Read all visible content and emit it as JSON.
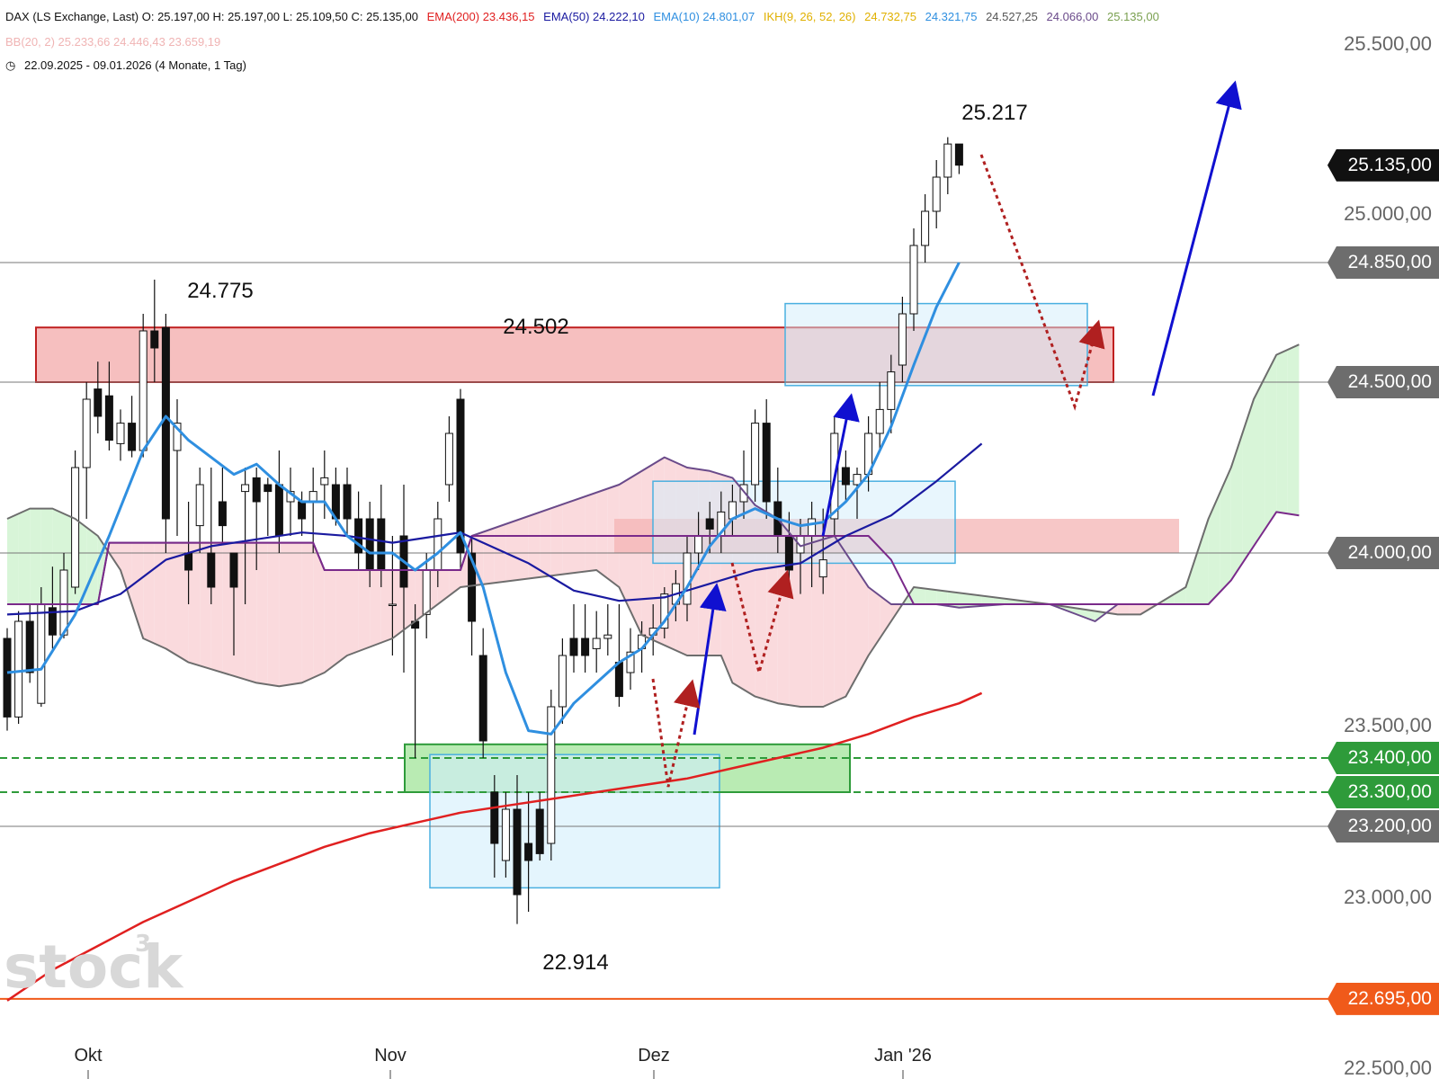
{
  "header": {
    "line1": "DAX (LS Exchange, Last)  O: 25.197,00  H: 25.197,00  L: 25.109,50  C: 25.135,00",
    "ema200": "EMA(200)  23.436,15",
    "ema50": "EMA(50)  24.222,10",
    "ema10": "EMA(10)  24.801,07",
    "ikh_label": "IKH(9, 26, 52, 26)",
    "ikh_values": [
      "24.732,75",
      "24.321,75",
      "24.527,25",
      "24.066,00",
      "25.135,00"
    ],
    "bb": "BB(20, 2)  25.233,66  24.446,43  23.659,19",
    "range": "22.09.2025 - 09.01.2026  (4 Monate, 1 Tag)"
  },
  "colors": {
    "ema200": "#e02020",
    "ema50": "#1a1aa0",
    "ema10": "#2f8fe0",
    "ichimoku": "#6a4a8a",
    "cloud_bull": "#d8f5d8",
    "cloud_bear": "#fadadd",
    "resistance_zone": "#f4b4b4",
    "support_zone": "#a8e6a0",
    "box_blue": "#d2eefb",
    "arrow_blue": "#1010d0",
    "arrow_red_dotted": "#b02020",
    "badge_gray": "#6d6d6d",
    "badge_green": "#2e9b3a",
    "badge_orange": "#f05a1a",
    "badge_black": "#111111"
  },
  "chart_data": {
    "type": "candlestick",
    "instrument": "DAX (LS Exchange, Last)",
    "x_ticks": [
      "Okt",
      "Nov",
      "Dez",
      "Jan '26"
    ],
    "y_ticks": [
      "25.500,00",
      "25.000,00",
      "23.500,00",
      "23.000,00",
      "22.500,00"
    ],
    "ylim": [
      22500,
      25600
    ],
    "annotations": [
      "24.775",
      "24.502",
      "25.217",
      "22.914"
    ],
    "price_badges": [
      {
        "label": "25.135,00",
        "value": 25135,
        "style": "black"
      },
      {
        "label": "24.850,00",
        "value": 24850,
        "style": "gray"
      },
      {
        "label": "24.500,00",
        "value": 24500,
        "style": "gray"
      },
      {
        "label": "24.000,00",
        "value": 24000,
        "style": "gray"
      },
      {
        "label": "23.400,00",
        "value": 23400,
        "style": "green"
      },
      {
        "label": "23.300,00",
        "value": 23300,
        "style": "green"
      },
      {
        "label": "23.200,00",
        "value": 23200,
        "style": "gray"
      },
      {
        "label": "22.695,00",
        "value": 22695,
        "style": "orange"
      }
    ],
    "candles": [
      [
        23750,
        23780,
        23480,
        23520
      ],
      [
        23520,
        23830,
        23500,
        23800
      ],
      [
        23800,
        23850,
        23620,
        23650
      ],
      [
        23560,
        23900,
        23550,
        23850
      ],
      [
        23840,
        23960,
        23720,
        23760
      ],
      [
        23760,
        24000,
        23750,
        23950
      ],
      [
        23900,
        24300,
        23880,
        24250
      ],
      [
        24250,
        24500,
        24100,
        24450
      ],
      [
        24480,
        24560,
        24350,
        24400
      ],
      [
        24460,
        24560,
        24300,
        24330
      ],
      [
        24320,
        24420,
        24270,
        24380
      ],
      [
        24380,
        24460,
        24280,
        24300
      ],
      [
        24300,
        24700,
        24280,
        24650
      ],
      [
        24650,
        24800,
        24500,
        24600
      ],
      [
        24660,
        24700,
        24000,
        24100
      ],
      [
        24300,
        24450,
        24050,
        24380
      ],
      [
        24000,
        24150,
        23850,
        23950
      ],
      [
        24080,
        24250,
        24000,
        24200
      ],
      [
        24000,
        24250,
        23850,
        23900
      ],
      [
        24150,
        24250,
        24030,
        24080
      ],
      [
        24000,
        24000,
        23700,
        23900
      ],
      [
        24180,
        24250,
        23850,
        24200
      ],
      [
        24220,
        24250,
        23950,
        24150
      ],
      [
        24200,
        24220,
        24050,
        24180
      ],
      [
        24200,
        24300,
        24000,
        24050
      ],
      [
        24150,
        24250,
        24050,
        24180
      ],
      [
        24150,
        24180,
        24050,
        24100
      ],
      [
        24150,
        24250,
        24000,
        24180
      ],
      [
        24200,
        24300,
        24100,
        24220
      ],
      [
        24200,
        24250,
        24080,
        24100
      ],
      [
        24200,
        24250,
        24050,
        24100
      ],
      [
        24100,
        24180,
        23950,
        24000
      ],
      [
        24100,
        24150,
        23900,
        23950
      ],
      [
        24100,
        24200,
        23900,
        23950
      ],
      [
        23850,
        24050,
        23700,
        23850
      ],
      [
        24050,
        24200,
        23650,
        23900
      ],
      [
        23800,
        23850,
        23400,
        23780
      ],
      [
        23820,
        24000,
        23750,
        23950
      ],
      [
        23950,
        24150,
        23900,
        24100
      ],
      [
        24200,
        24400,
        24150,
        24350
      ],
      [
        24450,
        24480,
        23950,
        24000
      ],
      [
        24000,
        24050,
        23700,
        23800
      ],
      [
        23700,
        23780,
        23400,
        23450
      ],
      [
        23300,
        23350,
        23050,
        23150
      ],
      [
        23100,
        23300,
        23050,
        23250
      ],
      [
        23250,
        23350,
        22914,
        23000
      ],
      [
        23150,
        23300,
        22950,
        23100
      ],
      [
        23250,
        23300,
        23100,
        23120
      ],
      [
        23150,
        23600,
        23100,
        23550
      ],
      [
        23550,
        23750,
        23500,
        23700
      ],
      [
        23750,
        23850,
        23650,
        23700
      ],
      [
        23750,
        23850,
        23650,
        23700
      ],
      [
        23720,
        23830,
        23650,
        23750
      ],
      [
        23750,
        23850,
        23700,
        23760
      ],
      [
        23680,
        23850,
        23550,
        23580
      ],
      [
        23650,
        23780,
        23600,
        23710
      ],
      [
        23720,
        23800,
        23650,
        23760
      ],
      [
        23760,
        23850,
        23700,
        23780
      ],
      [
        23780,
        23900,
        23750,
        23880
      ],
      [
        23850,
        23950,
        23800,
        23910
      ],
      [
        23850,
        24050,
        23800,
        24000
      ],
      [
        24000,
        24120,
        23950,
        24050
      ],
      [
        24100,
        24150,
        24000,
        24070
      ],
      [
        24050,
        24180,
        24000,
        24120
      ],
      [
        24100,
        24200,
        24050,
        24150
      ],
      [
        24150,
        24300,
        24100,
        24200
      ],
      [
        24200,
        24420,
        24150,
        24380
      ],
      [
        24380,
        24450,
        24100,
        24150
      ],
      [
        24150,
        24250,
        24000,
        24050
      ],
      [
        24050,
        24120,
        23900,
        23950
      ],
      [
        24000,
        24100,
        23880,
        24050
      ],
      [
        24050,
        24150,
        23900,
        24100
      ],
      [
        23930,
        24130,
        23880,
        23980
      ],
      [
        24100,
        24400,
        24050,
        24350
      ],
      [
        24250,
        24300,
        24150,
        24200
      ],
      [
        24200,
        24250,
        24100,
        24230
      ],
      [
        24230,
        24400,
        24180,
        24350
      ],
      [
        24350,
        24500,
        24300,
        24420
      ],
      [
        24420,
        24580,
        24350,
        24530
      ],
      [
        24550,
        24750,
        24500,
        24700
      ],
      [
        24700,
        24950,
        24650,
        24900
      ],
      [
        24900,
        25050,
        24850,
        25000
      ],
      [
        25000,
        25150,
        24950,
        25100
      ],
      [
        25100,
        25217,
        25050,
        25197
      ],
      [
        25197,
        25197,
        25109,
        25135
      ]
    ],
    "series": [
      {
        "name": "EMA(200)",
        "values": [
          [
            0,
            22690
          ],
          [
            4,
            22780
          ],
          [
            8,
            22850
          ],
          [
            12,
            22920
          ],
          [
            16,
            22980
          ],
          [
            20,
            23040
          ],
          [
            24,
            23090
          ],
          [
            28,
            23140
          ],
          [
            32,
            23180
          ],
          [
            36,
            23210
          ],
          [
            40,
            23240
          ],
          [
            44,
            23260
          ],
          [
            48,
            23280
          ],
          [
            52,
            23300
          ],
          [
            56,
            23320
          ],
          [
            60,
            23340
          ],
          [
            64,
            23370
          ],
          [
            68,
            23400
          ],
          [
            72,
            23430
          ],
          [
            76,
            23470
          ],
          [
            80,
            23520
          ],
          [
            84,
            23560
          ],
          [
            86,
            23590
          ]
        ]
      },
      {
        "name": "EMA(50)",
        "values": [
          [
            0,
            23820
          ],
          [
            6,
            23830
          ],
          [
            10,
            23880
          ],
          [
            14,
            23980
          ],
          [
            18,
            24020
          ],
          [
            22,
            24040
          ],
          [
            26,
            24060
          ],
          [
            30,
            24050
          ],
          [
            34,
            24030
          ],
          [
            38,
            24050
          ],
          [
            40,
            24060
          ],
          [
            42,
            24030
          ],
          [
            46,
            23970
          ],
          [
            50,
            23890
          ],
          [
            54,
            23860
          ],
          [
            58,
            23870
          ],
          [
            62,
            23910
          ],
          [
            66,
            23950
          ],
          [
            70,
            23970
          ],
          [
            74,
            24050
          ],
          [
            78,
            24110
          ],
          [
            82,
            24210
          ],
          [
            86,
            24320
          ]
        ]
      },
      {
        "name": "EMA(10)",
        "values": [
          [
            0,
            23650
          ],
          [
            3,
            23660
          ],
          [
            6,
            23820
          ],
          [
            9,
            24050
          ],
          [
            12,
            24300
          ],
          [
            14,
            24400
          ],
          [
            16,
            24330
          ],
          [
            18,
            24280
          ],
          [
            20,
            24230
          ],
          [
            22,
            24260
          ],
          [
            24,
            24200
          ],
          [
            26,
            24150
          ],
          [
            28,
            24150
          ],
          [
            30,
            24050
          ],
          [
            32,
            24000
          ],
          [
            34,
            24000
          ],
          [
            36,
            23950
          ],
          [
            38,
            24000
          ],
          [
            40,
            24060
          ],
          [
            42,
            23900
          ],
          [
            44,
            23650
          ],
          [
            46,
            23480
          ],
          [
            48,
            23470
          ],
          [
            50,
            23560
          ],
          [
            52,
            23620
          ],
          [
            54,
            23680
          ],
          [
            56,
            23720
          ],
          [
            58,
            23800
          ],
          [
            60,
            23900
          ],
          [
            62,
            24020
          ],
          [
            64,
            24100
          ],
          [
            66,
            24130
          ],
          [
            68,
            24100
          ],
          [
            70,
            24080
          ],
          [
            72,
            24090
          ],
          [
            74,
            24150
          ],
          [
            76,
            24230
          ],
          [
            78,
            24370
          ],
          [
            80,
            24550
          ],
          [
            82,
            24720
          ],
          [
            84,
            24850
          ]
        ]
      },
      {
        "name": "Kijun",
        "values": [
          [
            0,
            23850
          ],
          [
            8,
            23850
          ],
          [
            9,
            24030
          ],
          [
            22,
            24030
          ],
          [
            27,
            24030
          ],
          [
            28,
            23950
          ],
          [
            40,
            23950
          ],
          [
            41,
            24050
          ],
          [
            76,
            24050
          ],
          [
            78,
            23980
          ],
          [
            80,
            23850
          ],
          [
            98,
            23850
          ],
          [
            100,
            23850
          ],
          [
            106,
            23850
          ],
          [
            108,
            23920
          ],
          [
            112,
            24120
          ],
          [
            114,
            24110
          ]
        ]
      },
      {
        "name": "Senkou A",
        "values": [
          [
            0,
            24100
          ],
          [
            2,
            24130
          ],
          [
            4,
            24130
          ],
          [
            6,
            24100
          ],
          [
            8,
            24050
          ],
          [
            10,
            23950
          ],
          [
            12,
            23750
          ],
          [
            14,
            23720
          ],
          [
            16,
            23680
          ],
          [
            18,
            23660
          ],
          [
            20,
            23640
          ],
          [
            22,
            23620
          ],
          [
            24,
            23610
          ],
          [
            26,
            23620
          ],
          [
            28,
            23650
          ],
          [
            30,
            23700
          ],
          [
            34,
            23750
          ],
          [
            40,
            23900
          ],
          [
            52,
            23950
          ],
          [
            54,
            23900
          ],
          [
            56,
            23760
          ],
          [
            60,
            23700
          ],
          [
            63,
            23700
          ],
          [
            64,
            23620
          ],
          [
            66,
            23580
          ],
          [
            68,
            23560
          ],
          [
            70,
            23550
          ],
          [
            72,
            23550
          ],
          [
            74,
            23580
          ],
          [
            76,
            23700
          ],
          [
            80,
            23900
          ],
          [
            92,
            23850
          ],
          [
            98,
            23820
          ],
          [
            100,
            23820
          ],
          [
            104,
            23900
          ],
          [
            106,
            24100
          ],
          [
            108,
            24250
          ],
          [
            110,
            24450
          ],
          [
            112,
            24580
          ],
          [
            114,
            24610
          ]
        ]
      },
      {
        "name": "Senkou B",
        "values": [
          [
            0,
            23850
          ],
          [
            8,
            23850
          ],
          [
            9,
            24030
          ],
          [
            22,
            24030
          ],
          [
            27,
            24030
          ],
          [
            28,
            23950
          ],
          [
            40,
            23950
          ],
          [
            41,
            24050
          ],
          [
            54,
            24200
          ],
          [
            58,
            24280
          ],
          [
            60,
            24250
          ],
          [
            62,
            24240
          ],
          [
            64,
            24220
          ],
          [
            66,
            24140
          ],
          [
            68,
            24100
          ],
          [
            70,
            24020
          ],
          [
            73,
            24050
          ],
          [
            76,
            23900
          ],
          [
            78,
            23850
          ],
          [
            80,
            23850
          ],
          [
            82,
            23850
          ],
          [
            84,
            23840
          ],
          [
            88,
            23850
          ],
          [
            92,
            23850
          ],
          [
            96,
            23800
          ],
          [
            98,
            23850
          ],
          [
            100,
            23850
          ]
        ]
      }
    ]
  }
}
